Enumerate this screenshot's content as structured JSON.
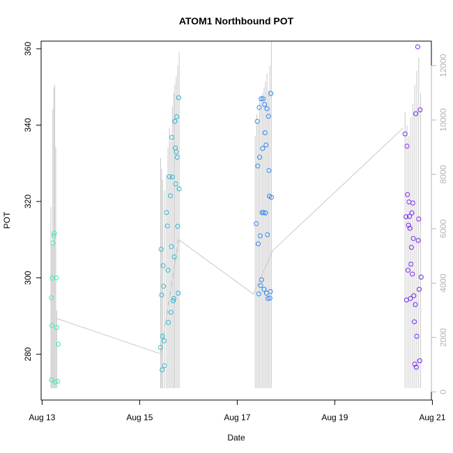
{
  "chart_data": {
    "type": "scatter",
    "title": "ATOM1 Northbound POT",
    "xlabel": "Date",
    "ylabel": "POT",
    "x_ticks": [
      "Aug 13",
      "Aug 15",
      "Aug 17",
      "Aug 19",
      "Aug 21"
    ],
    "x_tick_values": [
      13,
      15,
      17,
      19,
      21
    ],
    "xlim": [
      12.98,
      20.98
    ],
    "ylim": [
      268,
      362
    ],
    "y_ticks": [
      280,
      300,
      320,
      340,
      360
    ],
    "y2_ticks": [
      0,
      2000,
      4000,
      6000,
      8000,
      10000,
      12000
    ],
    "y2_tick_labels": [
      "0",
      "2000",
      "4000",
      "6000",
      "8000",
      "10000",
      "12000"
    ],
    "y2lim": [
      -300,
      12900
    ],
    "grid": false,
    "legend": "none",
    "colors": {
      "points_start": "#33f5a0",
      "points_mid": "#2f8cf0",
      "points_end": "#7a1ff5",
      "secondary_line": "#c8c8c8",
      "right_axis": "#b3b3b3"
    },
    "series": [
      {
        "values": [
          {
            "x": 13.19,
            "y": 294.8
          },
          {
            "x": 13.19,
            "y": 273.3
          },
          {
            "x": 13.2,
            "y": 287.5
          },
          {
            "x": 13.21,
            "y": 299.9
          },
          {
            "x": 13.22,
            "y": 309.1
          },
          {
            "x": 13.24,
            "y": 311.0
          },
          {
            "x": 13.25,
            "y": 311.7
          },
          {
            "x": 13.27,
            "y": 272.7
          },
          {
            "x": 13.29,
            "y": 300.0
          },
          {
            "x": 13.3,
            "y": 287.0
          },
          {
            "x": 13.32,
            "y": 272.9
          },
          {
            "x": 13.33,
            "y": 282.6
          },
          {
            "x": 15.43,
            "y": 281.8
          },
          {
            "x": 15.44,
            "y": 307.5
          },
          {
            "x": 15.45,
            "y": 295.5
          },
          {
            "x": 15.46,
            "y": 275.9
          },
          {
            "x": 15.47,
            "y": 284.7
          },
          {
            "x": 15.48,
            "y": 303.2
          },
          {
            "x": 15.49,
            "y": 297.8
          },
          {
            "x": 15.5,
            "y": 283.5
          },
          {
            "x": 15.51,
            "y": 277.0
          },
          {
            "x": 15.55,
            "y": 317.1
          },
          {
            "x": 15.57,
            "y": 313.6
          },
          {
            "x": 15.58,
            "y": 302.0
          },
          {
            "x": 15.59,
            "y": 288.3
          },
          {
            "x": 15.61,
            "y": 326.5
          },
          {
            "x": 15.63,
            "y": 321.5
          },
          {
            "x": 15.64,
            "y": 291.0
          },
          {
            "x": 15.65,
            "y": 308.2
          },
          {
            "x": 15.66,
            "y": 336.8
          },
          {
            "x": 15.67,
            "y": 326.4
          },
          {
            "x": 15.69,
            "y": 294.0
          },
          {
            "x": 15.7,
            "y": 294.6
          },
          {
            "x": 15.71,
            "y": 305.5
          },
          {
            "x": 15.72,
            "y": 341.0
          },
          {
            "x": 15.73,
            "y": 334.0
          },
          {
            "x": 15.74,
            "y": 324.6
          },
          {
            "x": 15.75,
            "y": 333.0
          },
          {
            "x": 15.76,
            "y": 342.2
          },
          {
            "x": 15.77,
            "y": 331.6
          },
          {
            "x": 15.78,
            "y": 313.5
          },
          {
            "x": 15.79,
            "y": 296.0
          },
          {
            "x": 15.8,
            "y": 347.2
          },
          {
            "x": 15.81,
            "y": 323.3
          },
          {
            "x": 17.39,
            "y": 314.2
          },
          {
            "x": 17.41,
            "y": 341.0
          },
          {
            "x": 17.42,
            "y": 329.3
          },
          {
            "x": 17.43,
            "y": 308.9
          },
          {
            "x": 17.44,
            "y": 295.8
          },
          {
            "x": 17.45,
            "y": 344.6
          },
          {
            "x": 17.46,
            "y": 331.6
          },
          {
            "x": 17.47,
            "y": 311.0
          },
          {
            "x": 17.48,
            "y": 298.0
          },
          {
            "x": 17.49,
            "y": 346.9
          },
          {
            "x": 17.5,
            "y": 299.5
          },
          {
            "x": 17.51,
            "y": 317.1
          },
          {
            "x": 17.52,
            "y": 333.9
          },
          {
            "x": 17.53,
            "y": 346.9
          },
          {
            "x": 17.54,
            "y": 317.1
          },
          {
            "x": 17.55,
            "y": 297.0
          },
          {
            "x": 17.56,
            "y": 345.4
          },
          {
            "x": 17.57,
            "y": 338.0
          },
          {
            "x": 17.58,
            "y": 317.0
          },
          {
            "x": 17.59,
            "y": 334.8
          },
          {
            "x": 17.6,
            "y": 296.0
          },
          {
            "x": 17.61,
            "y": 344.3
          },
          {
            "x": 17.62,
            "y": 311.3
          },
          {
            "x": 17.63,
            "y": 294.6
          },
          {
            "x": 17.64,
            "y": 342.3
          },
          {
            "x": 17.65,
            "y": 328.1
          },
          {
            "x": 17.66,
            "y": 321.4
          },
          {
            "x": 17.67,
            "y": 294.7
          },
          {
            "x": 17.68,
            "y": 296.4
          },
          {
            "x": 17.69,
            "y": 348.3
          },
          {
            "x": 17.7,
            "y": 321.1
          },
          {
            "x": 20.44,
            "y": 337.7
          },
          {
            "x": 20.46,
            "y": 316.0
          },
          {
            "x": 20.47,
            "y": 294.2
          },
          {
            "x": 20.48,
            "y": 334.5
          },
          {
            "x": 20.49,
            "y": 321.8
          },
          {
            "x": 20.5,
            "y": 302.0
          },
          {
            "x": 20.51,
            "y": 313.8
          },
          {
            "x": 20.52,
            "y": 319.9
          },
          {
            "x": 20.53,
            "y": 316.1
          },
          {
            "x": 20.54,
            "y": 313.0
          },
          {
            "x": 20.55,
            "y": 294.6
          },
          {
            "x": 20.56,
            "y": 303.6
          },
          {
            "x": 20.57,
            "y": 308.0
          },
          {
            "x": 20.58,
            "y": 317.0
          },
          {
            "x": 20.59,
            "y": 301.0
          },
          {
            "x": 20.6,
            "y": 319.6
          },
          {
            "x": 20.61,
            "y": 310.3
          },
          {
            "x": 20.62,
            "y": 295.3
          },
          {
            "x": 20.63,
            "y": 288.5
          },
          {
            "x": 20.64,
            "y": 277.4
          },
          {
            "x": 20.65,
            "y": 293.0
          },
          {
            "x": 20.66,
            "y": 343.0
          },
          {
            "x": 20.67,
            "y": 276.6
          },
          {
            "x": 20.68,
            "y": 284.7
          },
          {
            "x": 20.7,
            "y": 360.5
          },
          {
            "x": 20.71,
            "y": 309.8
          },
          {
            "x": 20.72,
            "y": 315.4
          },
          {
            "x": 20.73,
            "y": 297.0
          },
          {
            "x": 20.74,
            "y": 278.3
          },
          {
            "x": 20.75,
            "y": 344.0
          },
          {
            "x": 20.77,
            "y": 300.2
          }
        ]
      },
      {
        "axis": "right",
        "baseline_values": [
          {
            "x": 13.3,
            "y": 2700
          },
          {
            "x": 15.43,
            "y": 1400
          },
          {
            "x": 15.8,
            "y": 5600
          },
          {
            "x": 17.33,
            "y": 3600
          },
          {
            "x": 17.73,
            "y": 5200
          },
          {
            "x": 20.4,
            "y": 9700
          }
        ],
        "spikes": [
          {
            "x": 13.18,
            "y": 6800
          },
          {
            "x": 13.2,
            "y": 5400
          },
          {
            "x": 13.22,
            "y": 10400
          },
          {
            "x": 13.24,
            "y": 11200
          },
          {
            "x": 13.26,
            "y": 11300
          },
          {
            "x": 13.28,
            "y": 9000
          },
          {
            "x": 13.3,
            "y": 3000
          },
          {
            "x": 15.43,
            "y": 8600
          },
          {
            "x": 15.45,
            "y": 8200
          },
          {
            "x": 15.47,
            "y": 7800
          },
          {
            "x": 15.51,
            "y": 7400
          },
          {
            "x": 15.55,
            "y": 8000
          },
          {
            "x": 15.58,
            "y": 9000
          },
          {
            "x": 15.61,
            "y": 9700
          },
          {
            "x": 15.64,
            "y": 9200
          },
          {
            "x": 15.67,
            "y": 10500
          },
          {
            "x": 15.7,
            "y": 11000
          },
          {
            "x": 15.72,
            "y": 11300
          },
          {
            "x": 15.75,
            "y": 11600
          },
          {
            "x": 15.78,
            "y": 12000
          },
          {
            "x": 15.81,
            "y": 12500
          },
          {
            "x": 17.37,
            "y": 9400
          },
          {
            "x": 17.4,
            "y": 10200
          },
          {
            "x": 17.43,
            "y": 9900
          },
          {
            "x": 17.46,
            "y": 10800
          },
          {
            "x": 17.49,
            "y": 10900
          },
          {
            "x": 17.52,
            "y": 11000
          },
          {
            "x": 17.55,
            "y": 11200
          },
          {
            "x": 17.58,
            "y": 11400
          },
          {
            "x": 17.61,
            "y": 11700
          },
          {
            "x": 17.64,
            "y": 11100
          },
          {
            "x": 17.67,
            "y": 12000
          },
          {
            "x": 17.7,
            "y": 12900
          },
          {
            "x": 20.44,
            "y": 10300
          },
          {
            "x": 20.48,
            "y": 9800
          },
          {
            "x": 20.52,
            "y": 9400
          },
          {
            "x": 20.56,
            "y": 10100
          },
          {
            "x": 20.6,
            "y": 10600
          },
          {
            "x": 20.64,
            "y": 11300
          },
          {
            "x": 20.68,
            "y": 11800
          },
          {
            "x": 20.72,
            "y": 12300
          },
          {
            "x": 20.76,
            "y": 11000
          }
        ]
      }
    ]
  }
}
